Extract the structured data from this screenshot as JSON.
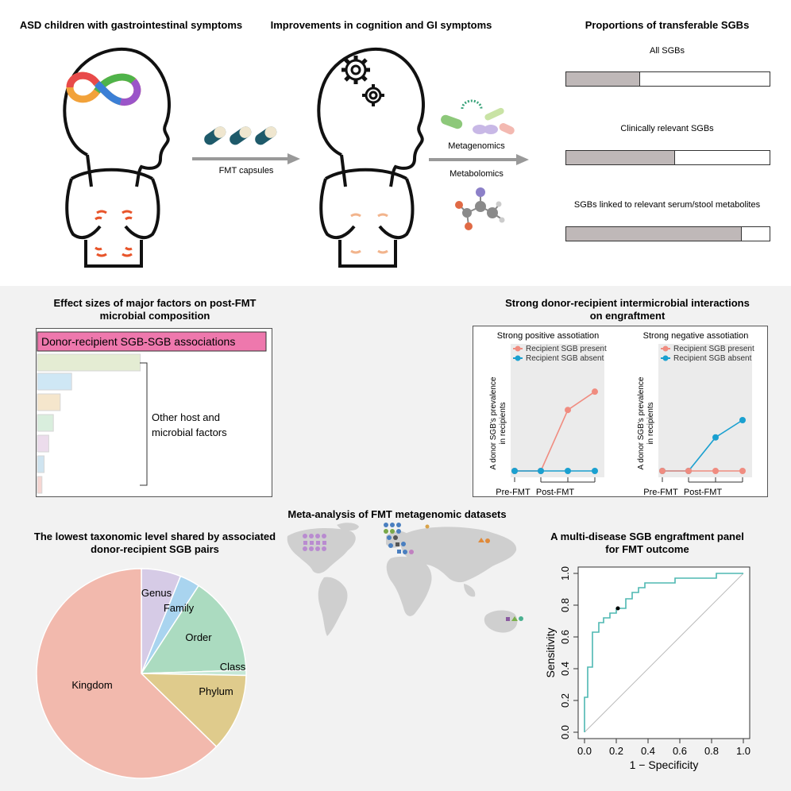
{
  "top": {
    "asd_title": "ASD children with gastrointestinal symptoms",
    "improve_title": "Improvements in cognition and GI symptoms",
    "prop_title": "Proportions of transferable SGBs",
    "fmt_label": "FMT capsules",
    "metagenomics_label": "Metagenomics",
    "metabolomics_label": "Metabolomics"
  },
  "proportions": {
    "bars": [
      {
        "label": "All SGBs",
        "fraction": 0.36
      },
      {
        "label": "Clinically relevant SGBs",
        "fraction": 0.53
      },
      {
        "label": "SGBs linked to relevant serum/stool metabolites",
        "fraction": 0.86
      }
    ]
  },
  "effect": {
    "title_line1": "Effect sizes of major factors on post-FMT",
    "title_line2": "microbial composition",
    "main_label": "Donor-recipient SGB-SGB associations",
    "other_line1": "Other host and",
    "other_line2": "microbial factors",
    "colors": {
      "main": "#ee78ad"
    }
  },
  "interactions": {
    "title_line1": "Strong donor-recipient intermicrobial interactions",
    "title_line2": "on engraftment",
    "ylabel_line1": "A donor SGB's prevalence",
    "ylabel_line2": "in recipients",
    "xlabel_pre": "Pre-FMT",
    "xlabel_post": "Post-FMT",
    "legend_present": "Recipient SGB present",
    "legend_absent": "Recipient SGB absent",
    "colors": {
      "present": "#f08c80",
      "absent": "#1aa0d0"
    }
  },
  "chart_data": [
    {
      "type": "bar",
      "title": "Proportions of transferable SGBs",
      "categories": [
        "All SGBs",
        "Clinically relevant SGBs",
        "SGBs linked to relevant serum/stool metabolites"
      ],
      "values": [
        0.36,
        0.53,
        0.86
      ],
      "ylim": [
        0,
        1
      ]
    },
    {
      "type": "bar",
      "title": "Effect sizes of major factors on post-FMT microbial composition",
      "categories": [
        "Donor-recipient SGB-SGB associations",
        "",
        "",
        "",
        "",
        "",
        "",
        ""
      ],
      "values": [
        1.0,
        0.45,
        0.15,
        0.1,
        0.07,
        0.05,
        0.03,
        0.02
      ],
      "bar_colors": [
        "#ee78ad",
        "#e4ecd3",
        "#cfe7f5",
        "#f5e6cc",
        "#d9eedd",
        "#ecdcec",
        "#cfe4f0",
        "#f6d6d2"
      ]
    },
    {
      "type": "line",
      "title": "Strong positive assotiation",
      "x": [
        1,
        2,
        3,
        4
      ],
      "xlabel": "Pre-FMT / Post-FMT",
      "ylabel": "A donor SGB's prevalence in recipients",
      "ylim": [
        0,
        1
      ],
      "series": [
        {
          "name": "Recipient SGB present",
          "values": [
            0,
            0,
            0.6,
            0.78
          ]
        },
        {
          "name": "Recipient SGB absent",
          "values": [
            0,
            0,
            0,
            0
          ]
        }
      ]
    },
    {
      "type": "line",
      "title": "Strong negative assotiation",
      "x": [
        1,
        2,
        3,
        4
      ],
      "xlabel": "Pre-FMT / Post-FMT",
      "ylabel": "A donor SGB's prevalence in recipients",
      "ylim": [
        0,
        1
      ],
      "series": [
        {
          "name": "Recipient SGB present",
          "values": [
            0,
            0,
            0,
            0
          ]
        },
        {
          "name": "Recipient SGB absent",
          "values": [
            0,
            0,
            0.33,
            0.5
          ]
        }
      ]
    },
    {
      "type": "pie",
      "title": "The lowest taxonomic level shared by associated donor-recipient SGB pairs",
      "categories": [
        "Genus",
        "Family",
        "Order",
        "Class",
        "Phylum",
        "Kingdom"
      ],
      "values": [
        6.1,
        3.1,
        15.3,
        0.8,
        12.0,
        62.7
      ],
      "colors": [
        "#d6cbe6",
        "#a9d4ef",
        "#abdbc0",
        "#c5e7d6",
        "#dfcb8c",
        "#f2b9ad"
      ]
    },
    {
      "type": "line",
      "title": "A multi-disease SGB engraftment panel for FMT outcome",
      "xlabel": "1 − Specificity",
      "ylabel": "Sensitivity",
      "xlim": [
        0,
        1
      ],
      "ylim": [
        0,
        1
      ],
      "xticks": [
        "0.0",
        "0.2",
        "0.4",
        "0.6",
        "0.8",
        "1.0"
      ],
      "yticks": [
        "0.0",
        "0.2",
        "0.4",
        "0.6",
        "0.8",
        "1.0"
      ],
      "series": [
        {
          "name": "ROC",
          "x": [
            0,
            0,
            0.02,
            0.02,
            0.05,
            0.05,
            0.09,
            0.09,
            0.12,
            0.12,
            0.16,
            0.16,
            0.2,
            0.2,
            0.26,
            0.26,
            0.3,
            0.3,
            0.34,
            0.34,
            0.38,
            0.38,
            0.57,
            0.57,
            0.74,
            0.74,
            0.83,
            0.83,
            1.0
          ],
          "y": [
            0,
            0.22,
            0.22,
            0.41,
            0.41,
            0.63,
            0.63,
            0.69,
            0.69,
            0.72,
            0.72,
            0.75,
            0.75,
            0.78,
            0.78,
            0.84,
            0.84,
            0.88,
            0.88,
            0.91,
            0.91,
            0.94,
            0.94,
            0.97,
            0.97,
            0.97,
            0.97,
            1.0,
            1.0
          ]
        },
        {
          "name": "Reference",
          "x": [
            0,
            1
          ],
          "y": [
            0,
            1
          ]
        }
      ],
      "highlight_point": {
        "x": 0.21,
        "y": 0.78
      },
      "colors": {
        "roc": "#4eb8b2",
        "ref": "#bbbbbb"
      }
    }
  ],
  "meta": {
    "title": "Meta-analysis of FMT metagenomic datasets"
  },
  "pie": {
    "title_line1": "The lowest taxonomic level shared by associated",
    "title_line2": "donor-recipient SGB pairs"
  },
  "roc": {
    "title_line1": "A multi-disease SGB engraftment panel",
    "title_line2": "for FMT outcome"
  }
}
